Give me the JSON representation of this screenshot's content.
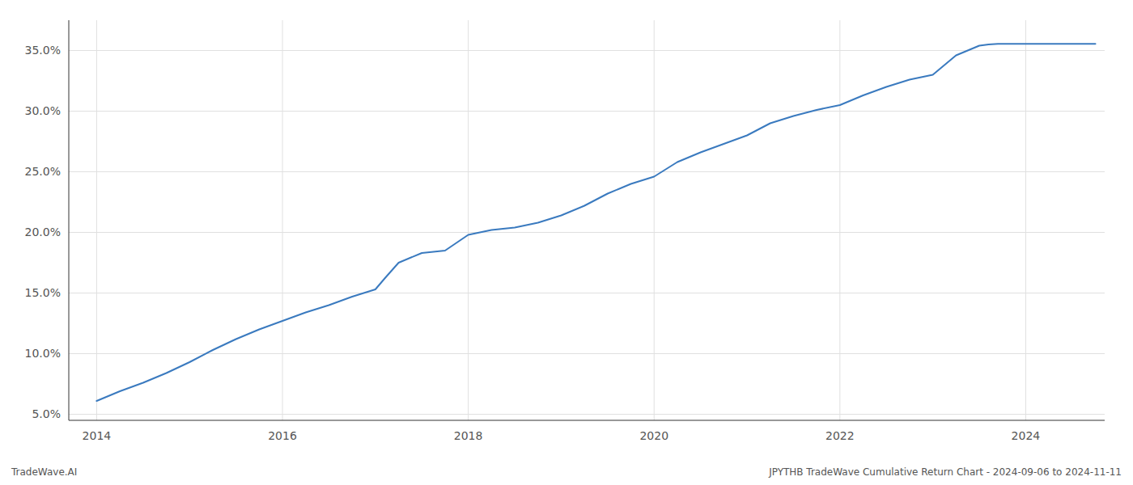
{
  "chart_data": {
    "type": "line",
    "title": "JPYTHB TradeWave Cumulative Return Chart - 2024-09-06 to 2024-11-11",
    "annotations": [
      "TradeWave.AI"
    ],
    "color": "#3a7abf",
    "grid": true,
    "xlim": [
      2013.7,
      2024.85
    ],
    "ylim": [
      4.5,
      37.5
    ],
    "xticks": [
      2014,
      2016,
      2018,
      2020,
      2022,
      2024
    ],
    "yticks": [
      {
        "value": 5.0,
        "label": "5.0%"
      },
      {
        "value": 10.0,
        "label": "10.0%"
      },
      {
        "value": 15.0,
        "label": "15.0%"
      },
      {
        "value": 20.0,
        "label": "20.0%"
      },
      {
        "value": 25.0,
        "label": "25.0%"
      },
      {
        "value": 30.0,
        "label": "30.0%"
      },
      {
        "value": 35.0,
        "label": "35.0%"
      }
    ],
    "x": [
      2014.0,
      2014.25,
      2014.5,
      2014.75,
      2015.0,
      2015.25,
      2015.5,
      2015.75,
      2016.0,
      2016.25,
      2016.5,
      2016.75,
      2017.0,
      2017.1,
      2017.25,
      2017.5,
      2017.75,
      2018.0,
      2018.25,
      2018.5,
      2018.75,
      2019.0,
      2019.25,
      2019.5,
      2019.75,
      2020.0,
      2020.25,
      2020.5,
      2020.75,
      2021.0,
      2021.25,
      2021.5,
      2021.75,
      2022.0,
      2022.25,
      2022.5,
      2022.75,
      2023.0,
      2023.25,
      2023.5,
      2023.6,
      2023.7,
      2024.0,
      2024.25,
      2024.5,
      2024.75
    ],
    "values": [
      6.1,
      6.9,
      7.6,
      8.4,
      9.3,
      10.3,
      11.2,
      12.0,
      12.7,
      13.4,
      14.0,
      14.7,
      15.3,
      16.2,
      17.5,
      18.3,
      18.5,
      19.8,
      20.2,
      20.4,
      20.8,
      21.4,
      22.2,
      23.2,
      24.0,
      24.6,
      25.8,
      26.6,
      27.3,
      28.0,
      29.0,
      29.6,
      30.1,
      30.5,
      31.3,
      32.0,
      32.6,
      33.0,
      34.6,
      35.4,
      35.5,
      35.55,
      35.55,
      35.55,
      35.55,
      35.55
    ]
  }
}
